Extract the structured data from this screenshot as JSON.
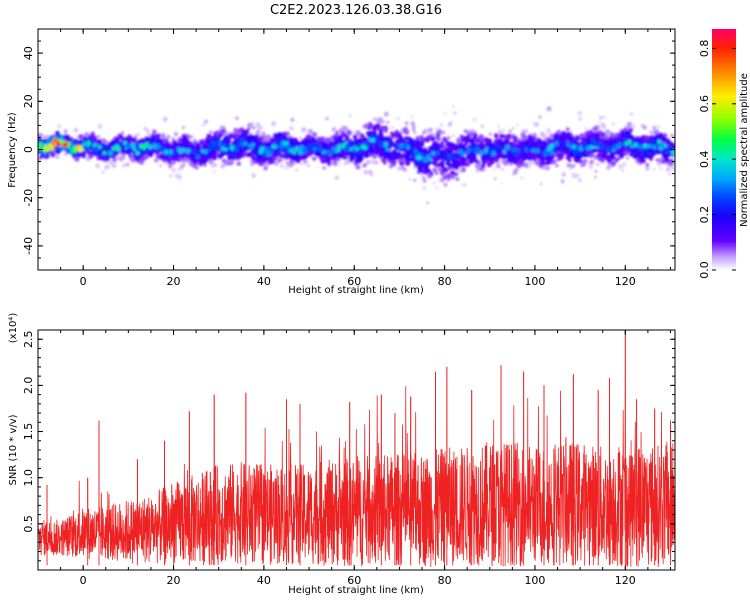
{
  "title": "C2E2.2023.126.03.38.G16",
  "chart_data": [
    {
      "type": "heatmap",
      "xlabel": "Height of straight line (km)",
      "ylabel": "Frequency (Hz)",
      "xlim": [
        -10,
        131
      ],
      "ylim": [
        -50,
        50
      ],
      "xticks": [
        0,
        20,
        40,
        60,
        80,
        100,
        120
      ],
      "yticks": [
        -40,
        -20,
        0,
        20,
        40
      ],
      "colorbar": {
        "label": "Normalized spectral amplitude",
        "range": [
          0.0,
          0.87
        ],
        "ticks": [
          0.0,
          0.2,
          0.4,
          0.6,
          0.8
        ],
        "colormap": [
          "#ffffff",
          "#c8a8ff",
          "#6600ff",
          "#1a00ff",
          "#0044ff",
          "#00aaff",
          "#00e6cc",
          "#00ff44",
          "#88ff00",
          "#ffee00",
          "#ff8800",
          "#ff2200",
          "#ff0066"
        ]
      },
      "band": {
        "x": [
          -10,
          -5,
          0,
          5,
          10,
          15,
          20,
          25,
          30,
          35,
          40,
          45,
          50,
          55,
          60,
          65,
          70,
          75,
          80,
          85,
          90,
          95,
          100,
          105,
          110,
          115,
          120,
          125,
          131
        ],
        "center_hz": [
          2,
          2,
          1,
          0,
          1,
          1,
          0,
          -1,
          1,
          2,
          0,
          1,
          0,
          0,
          1,
          3,
          1,
          -2,
          -3,
          -1,
          0,
          0,
          -1,
          1,
          1,
          1,
          2,
          1,
          0
        ],
        "halfwidth_hz": [
          6,
          6,
          6,
          7,
          7,
          8,
          8,
          9,
          10,
          10,
          9,
          9,
          8,
          9,
          10,
          12,
          12,
          14,
          15,
          12,
          10,
          10,
          10,
          10,
          10,
          10,
          10,
          9,
          9
        ],
        "peak_amplitude": [
          0.75,
          0.85,
          0.6,
          0.45,
          0.4,
          0.45,
          0.35,
          0.35,
          0.4,
          0.45,
          0.4,
          0.45,
          0.4,
          0.4,
          0.45,
          0.4,
          0.35,
          0.4,
          0.3,
          0.35,
          0.35,
          0.35,
          0.35,
          0.4,
          0.4,
          0.35,
          0.4,
          0.45,
          0.4
        ]
      }
    },
    {
      "type": "line",
      "color": "#ee2222",
      "xlabel": "Height of straight line (km)",
      "ylabel": "SNR (10 * v/v)",
      "yscale_label": "(x10⁴)",
      "xlim": [
        -10,
        131
      ],
      "ylim": [
        0.0,
        2.6
      ],
      "xticks": [
        0,
        20,
        40,
        60,
        80,
        100,
        120
      ],
      "yticks": [
        0.5,
        1.0,
        1.5,
        2.0,
        2.5
      ],
      "envelope": {
        "x": [
          -10,
          -5,
          0,
          5,
          10,
          15,
          20,
          25,
          30,
          35,
          40,
          45,
          50,
          55,
          60,
          65,
          70,
          75,
          80,
          85,
          90,
          95,
          100,
          105,
          110,
          115,
          120,
          125,
          131
        ],
        "mean": [
          0.35,
          0.35,
          0.4,
          0.4,
          0.42,
          0.45,
          0.5,
          0.55,
          0.6,
          0.62,
          0.6,
          0.6,
          0.6,
          0.62,
          0.62,
          0.65,
          0.65,
          0.65,
          0.68,
          0.7,
          0.72,
          0.72,
          0.7,
          0.72,
          0.72,
          0.7,
          0.72,
          0.7,
          0.7
        ],
        "spread": [
          0.2,
          0.2,
          0.28,
          0.3,
          0.35,
          0.38,
          0.45,
          0.5,
          0.55,
          0.55,
          0.55,
          0.55,
          0.55,
          0.58,
          0.6,
          0.6,
          0.62,
          0.62,
          0.65,
          0.65,
          0.68,
          0.68,
          0.65,
          0.68,
          0.68,
          0.65,
          0.7,
          0.68,
          0.65
        ]
      },
      "peaks": [
        {
          "x": -8,
          "y": 0.92
        },
        {
          "x": 1,
          "y": 1.0
        },
        {
          "x": 3.5,
          "y": 1.62
        },
        {
          "x": 12,
          "y": 1.2
        },
        {
          "x": 18,
          "y": 1.4
        },
        {
          "x": 23.5,
          "y": 1.72
        },
        {
          "x": 29,
          "y": 1.9
        },
        {
          "x": 36,
          "y": 1.92
        },
        {
          "x": 45,
          "y": 1.85
        },
        {
          "x": 48,
          "y": 1.8
        },
        {
          "x": 59,
          "y": 1.82
        },
        {
          "x": 66,
          "y": 1.9
        },
        {
          "x": 69,
          "y": 1.7
        },
        {
          "x": 72.5,
          "y": 1.88
        },
        {
          "x": 78,
          "y": 2.15
        },
        {
          "x": 80.5,
          "y": 2.2
        },
        {
          "x": 86,
          "y": 1.95
        },
        {
          "x": 92.5,
          "y": 2.22
        },
        {
          "x": 97.5,
          "y": 2.15
        },
        {
          "x": 102,
          "y": 2.0
        },
        {
          "x": 108.5,
          "y": 2.12
        },
        {
          "x": 114,
          "y": 1.95
        },
        {
          "x": 116.5,
          "y": 2.08
        },
        {
          "x": 120,
          "y": 2.6
        },
        {
          "x": 122.5,
          "y": 1.85
        },
        {
          "x": 126.5,
          "y": 1.75
        },
        {
          "x": 130,
          "y": 1.62
        }
      ]
    }
  ]
}
